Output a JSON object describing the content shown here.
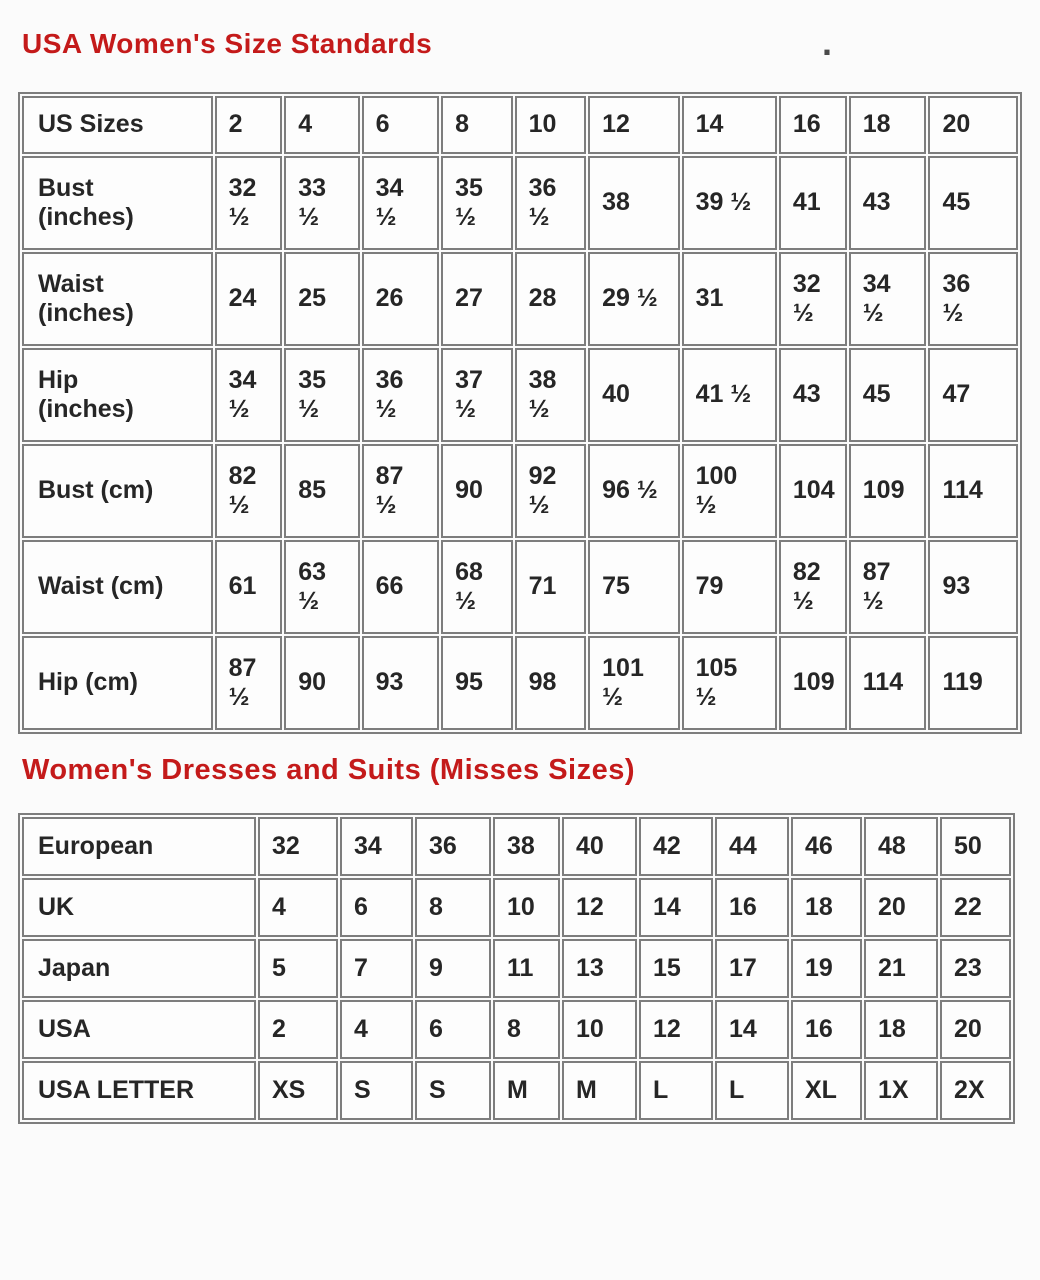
{
  "page": {
    "title1": "USA Women's Size Standards",
    "title2": "Women's Dresses and Suits (Misses Sizes)",
    "stray_mark": ".",
    "accent_color": "#c41a1a",
    "table_border_color": "#7d7d7d",
    "text_color": "#262626"
  },
  "size_standards_table": {
    "rows": [
      {
        "label": "US Sizes",
        "values": [
          "2",
          "4",
          "6",
          "8",
          "10",
          "12",
          "14",
          "16",
          "18",
          "20"
        ]
      },
      {
        "label": "Bust\n(inches)",
        "values": [
          "32\n½",
          "33\n½",
          "34\n½",
          "35\n½",
          "36\n½",
          "38",
          "39 ½",
          "41",
          "43",
          "45"
        ]
      },
      {
        "label": "Waist\n(inches)",
        "values": [
          "24",
          "25",
          "26",
          "27",
          "28",
          "29 ½",
          "31",
          "32\n½",
          "34\n½",
          "36\n½"
        ]
      },
      {
        "label": "Hip\n(inches)",
        "values": [
          "34\n½",
          "35\n½",
          "36\n½",
          "37\n½",
          "38\n½",
          "40",
          "41 ½",
          "43",
          "45",
          "47"
        ]
      },
      {
        "label": "Bust (cm)",
        "values": [
          "82\n½",
          "85",
          "87\n½",
          "90",
          "92\n½",
          "96 ½",
          "100\n½",
          "104",
          "109",
          "114"
        ]
      },
      {
        "label": "Waist (cm)",
        "values": [
          "61",
          "63\n½",
          "66",
          "68\n½",
          "71",
          "75",
          "79",
          "82\n½",
          "87\n½",
          "93"
        ]
      },
      {
        "label": "Hip (cm)",
        "values": [
          "87\n½",
          "90",
          "93",
          "95",
          "98",
          "101\n½",
          "105\n½",
          "109",
          "114",
          "119"
        ]
      }
    ]
  },
  "conversion_table": {
    "rows": [
      {
        "label": "European",
        "values": [
          "32",
          "34",
          "36",
          "38",
          "40",
          "42",
          "44",
          "46",
          "48",
          "50"
        ]
      },
      {
        "label": "UK",
        "values": [
          "4",
          "6",
          "8",
          "10",
          "12",
          "14",
          "16",
          "18",
          "20",
          "22"
        ]
      },
      {
        "label": "Japan",
        "values": [
          "5",
          "7",
          "9",
          "11",
          "13",
          "15",
          "17",
          "19",
          "21",
          "23"
        ]
      },
      {
        "label": "USA",
        "values": [
          "2",
          "4",
          "6",
          "8",
          "10",
          "12",
          "14",
          "16",
          "18",
          "20"
        ]
      },
      {
        "label": "USA LETTER",
        "values": [
          "XS",
          "S",
          "S",
          "M",
          "M",
          "L",
          "L",
          "XL",
          "1X",
          "2X"
        ]
      }
    ]
  }
}
